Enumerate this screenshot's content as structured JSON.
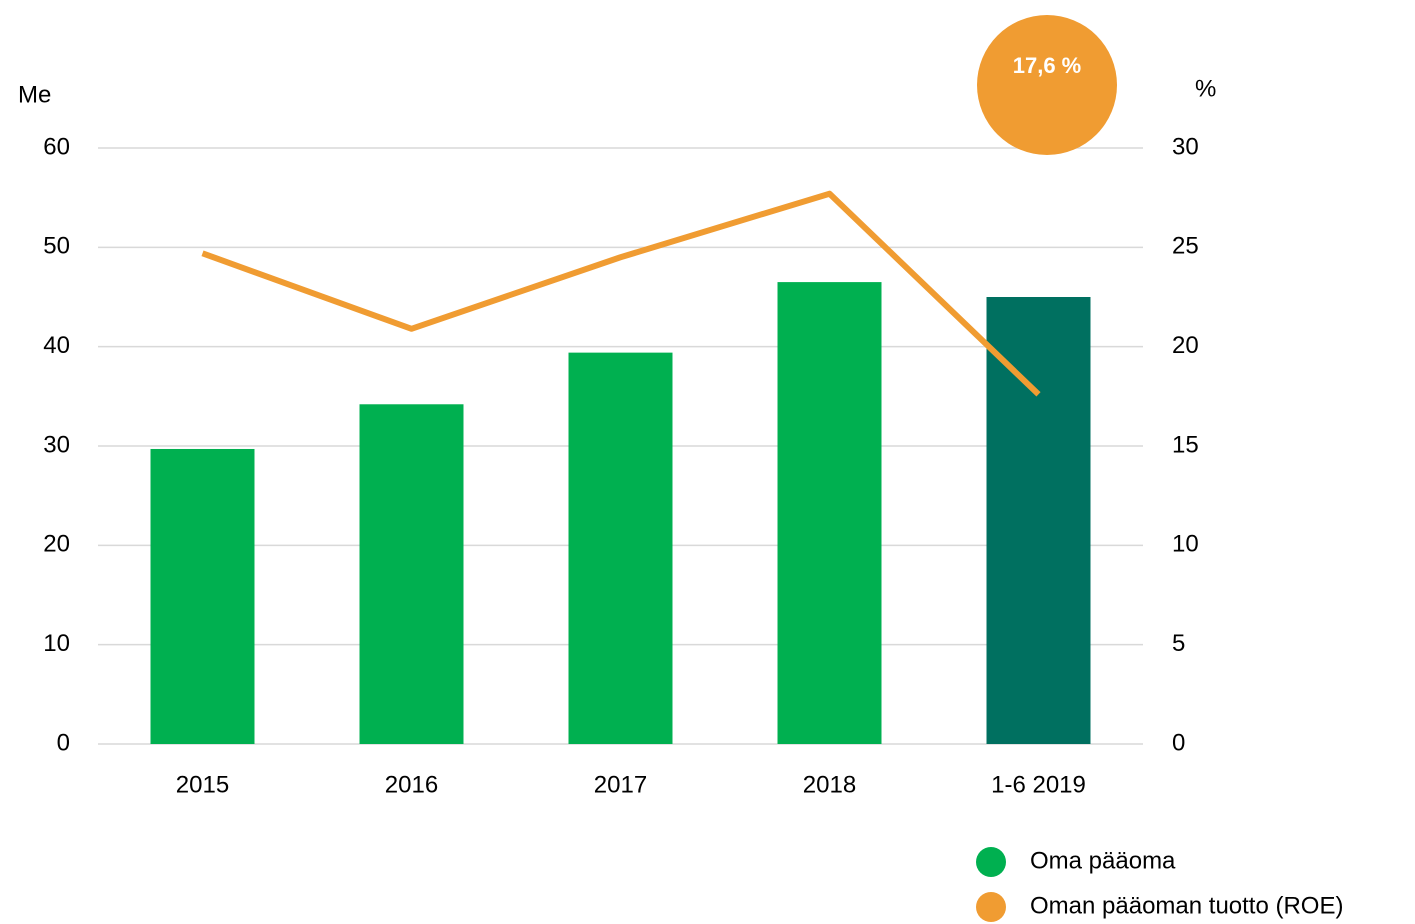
{
  "chart_data": {
    "type": "bar-line",
    "categories": [
      "2015",
      "2016",
      "2017",
      "2018",
      "1-6 2019"
    ],
    "y_label": "Me",
    "y2_label": "%",
    "ylim": [
      0,
      60
    ],
    "yticks": [
      0,
      10,
      20,
      30,
      40,
      50,
      60
    ],
    "y2lim": [
      0,
      30
    ],
    "y2ticks": [
      0,
      5,
      10,
      15,
      20,
      25,
      30
    ],
    "grid": true,
    "series": [
      {
        "name": "Oma pääoma",
        "type": "bar",
        "color": "#00b050",
        "colors": [
          "#00b050",
          "#00b050",
          "#00b050",
          "#00b050",
          "#007060"
        ],
        "values": [
          29.7,
          34.2,
          39.4,
          46.5,
          45.0
        ]
      },
      {
        "name": "Oman pääoman tuotto (ROE)",
        "type": "line",
        "axis": "y2",
        "color": "#f09c32",
        "values": [
          24.7,
          20.9,
          24.5,
          27.7,
          17.6
        ],
        "value_labels": [
          null,
          null,
          null,
          null,
          "17,6 %"
        ]
      }
    ]
  }
}
